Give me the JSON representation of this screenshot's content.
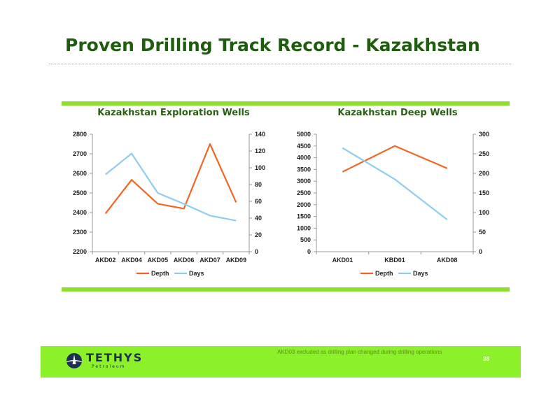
{
  "slide": {
    "title": "Proven Drilling Track Record - Kazakhstan",
    "footnote": "AKD03 excluded as drilling plan changed during drilling operations",
    "page_number": "38",
    "logo": {
      "name": "TETHYS",
      "subtitle": "Petroleum"
    }
  },
  "colors": {
    "depth": "#f26522",
    "days": "#8dcdf2",
    "accent_bar": "#8cdf2a",
    "title": "#1f5d0e"
  },
  "chart_data": [
    {
      "type": "line",
      "title": "Kazakhstan Exploration Wells",
      "categories": [
        "AKD02",
        "AKD04",
        "AKD05",
        "AKD06",
        "AKD07",
        "AKD09"
      ],
      "series": [
        {
          "name": "Depth",
          "axis": "left",
          "values": [
            2395,
            2567,
            2445,
            2420,
            2750,
            2452
          ]
        },
        {
          "name": "Days",
          "axis": "right",
          "values": [
            92,
            117,
            70,
            57,
            43,
            37
          ]
        }
      ],
      "ylim": [
        2200,
        2800
      ],
      "yticks": [
        "2200",
        "2300",
        "2400",
        "2500",
        "2600",
        "2700",
        "2800"
      ],
      "y2lim": [
        0,
        140
      ],
      "y2ticks": [
        "0",
        "20",
        "40",
        "60",
        "80",
        "100",
        "120",
        "140"
      ],
      "legend": "bottom",
      "grid": false
    },
    {
      "type": "line",
      "title": "Kazakhstan Deep Wells",
      "categories": [
        "AKD01",
        "KBD01",
        "AKD08"
      ],
      "series": [
        {
          "name": "Depth",
          "axis": "left",
          "values": [
            3400,
            4500,
            3550
          ]
        },
        {
          "name": "Days",
          "axis": "right",
          "values": [
            265,
            185,
            82
          ]
        }
      ],
      "ylim": [
        0,
        5000
      ],
      "yticks": [
        "0",
        "500",
        "1000",
        "1500",
        "2000",
        "2500",
        "3000",
        "3500",
        "4000",
        "4500",
        "5000"
      ],
      "y2lim": [
        0,
        300
      ],
      "y2ticks": [
        "0",
        "50",
        "100",
        "150",
        "200",
        "250",
        "300"
      ],
      "legend": "bottom",
      "grid": false
    }
  ]
}
